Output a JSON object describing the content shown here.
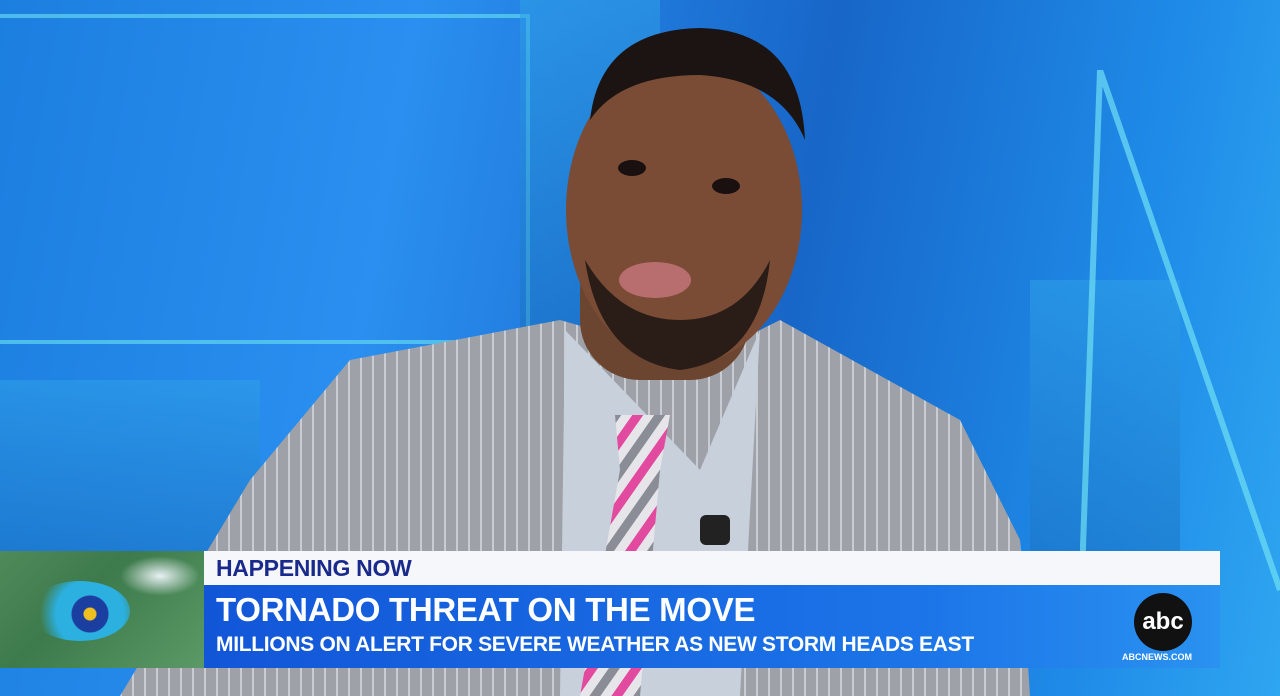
{
  "lower_third": {
    "kicker": "HAPPENING NOW",
    "headline": "TORNADO THREAT ON THE MOVE",
    "subheadline": "MILLIONS ON ALERT FOR SEVERE WEATHER AS NEW STORM HEADS EAST",
    "logo": "abc",
    "website": "ABCNEWS.COM"
  },
  "colors": {
    "kicker_bg": "#f6f7fa",
    "kicker_text": "#1a2a8c",
    "headline_bg": "#1256d8",
    "studio_blue": "#1c7fe0"
  }
}
